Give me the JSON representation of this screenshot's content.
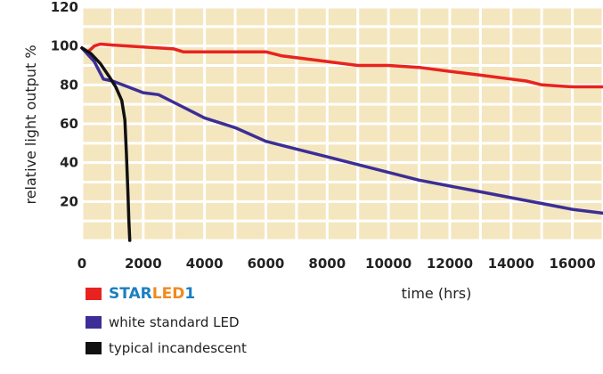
{
  "chart_data": {
    "type": "line",
    "title": "",
    "xlabel": "time (hrs)",
    "ylabel": "relative light output %",
    "xlim": [
      0,
      17000
    ],
    "ylim": [
      0,
      120
    ],
    "x_ticks": [
      0,
      2000,
      4000,
      6000,
      8000,
      10000,
      12000,
      14000,
      16000
    ],
    "y_ticks": [
      20,
      40,
      60,
      80,
      100,
      120
    ],
    "x_tick_labels": [
      "0",
      "2000",
      "4000",
      "6000",
      "8000",
      "10000",
      "12000",
      "14000",
      "16000"
    ],
    "y_tick_labels": [
      "20",
      "40",
      "60",
      "80",
      "100",
      "120"
    ],
    "grid": true,
    "background_color": "#f4e6bf",
    "grid_color": "#ffffff",
    "legend_position": "bottom-left",
    "series": [
      {
        "name": "STARLED1",
        "name_parts": [
          {
            "text": "STAR",
            "color": "#1b7fc1"
          },
          {
            "text": "LED",
            "color": "#f08a1c"
          },
          {
            "text": "1",
            "color": "#1b7fc1"
          }
        ],
        "color": "#e8231f",
        "x": [
          0,
          200,
          400,
          600,
          1000,
          2000,
          3000,
          3300,
          4000,
          5000,
          6000,
          6500,
          8000,
          9000,
          10000,
          11000,
          12000,
          13000,
          14000,
          14500,
          15000,
          16000,
          17000
        ],
        "y": [
          99,
          97,
          100,
          101,
          100.5,
          99.5,
          98.5,
          97,
          97,
          97,
          97,
          95,
          92,
          90,
          90,
          89,
          87,
          85,
          83,
          82,
          80,
          79,
          79
        ]
      },
      {
        "name": "white standard LED",
        "color": "#3c2e96",
        "x": [
          0,
          400,
          700,
          1000,
          1500,
          2000,
          2500,
          3000,
          3500,
          4000,
          5000,
          6000,
          7000,
          8000,
          9000,
          10000,
          11000,
          12000,
          13000,
          14000,
          15000,
          16000,
          17000
        ],
        "y": [
          99,
          92,
          83,
          82,
          79,
          76,
          75,
          71,
          67,
          63,
          58,
          51,
          47,
          43,
          39,
          35,
          31,
          28,
          25,
          22,
          19,
          16,
          14
        ]
      },
      {
        "name": "typical incandescent",
        "color": "#111111",
        "x": [
          0,
          300,
          600,
          900,
          1100,
          1300,
          1400,
          1450,
          1500,
          1530,
          1560
        ],
        "y": [
          99,
          96,
          91,
          84,
          79,
          72,
          62,
          45,
          25,
          10,
          0
        ]
      }
    ]
  }
}
